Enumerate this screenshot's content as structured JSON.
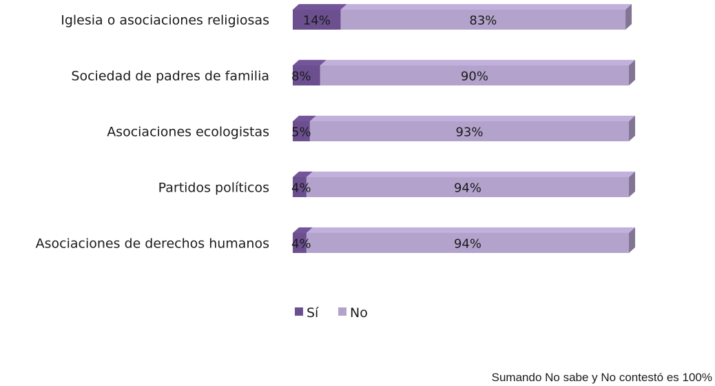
{
  "chart_data": {
    "type": "bar",
    "orientation": "horizontal",
    "stacked": true,
    "style": "3d",
    "categories": [
      "Iglesia o asociaciones religiosas",
      "Sociedad de padres de familia",
      "Asociaciones ecologistas",
      "Partidos políticos",
      "Asociaciones de derechos humanos"
    ],
    "series": [
      {
        "name": "Sí",
        "values": [
          14,
          8,
          5,
          4,
          4
        ],
        "color": "#6b4f8f"
      },
      {
        "name": "No",
        "values": [
          83,
          90,
          93,
          94,
          94
        ],
        "color": "#b3a3cc"
      }
    ],
    "value_format": "{v}%",
    "xlim": [
      0,
      100
    ],
    "grid": false,
    "legend_position": "bottom"
  },
  "footnote": "Sumando No sabe y No contestó es 100%"
}
